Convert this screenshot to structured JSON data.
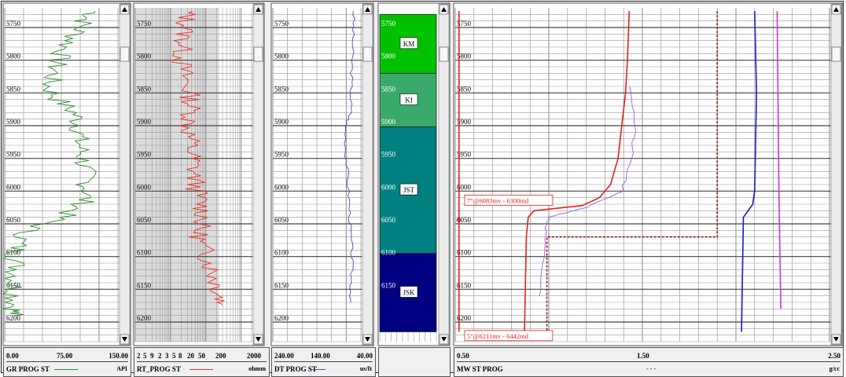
{
  "chart_data": {
    "type": "line",
    "depth_ticks": [
      "5750",
      "5800",
      "5850",
      "5900",
      "5950",
      "6000",
      "6050",
      "6100",
      "6150",
      "6200"
    ],
    "depth_range": [
      5720,
      6230
    ],
    "tracks": [
      {
        "id": "gr",
        "name": "GR PROG ST",
        "unit": "API",
        "scale_labels": [
          "0.00",
          "75.00",
          "150.00"
        ],
        "range": [
          0,
          150
        ],
        "scale": "linear",
        "color": "#2e8b2e",
        "series": [
          {
            "depth": 5725,
            "value": 120
          },
          {
            "depth": 5740,
            "value": 105
          },
          {
            "depth": 5760,
            "value": 95
          },
          {
            "depth": 5780,
            "value": 80
          },
          {
            "depth": 5800,
            "value": 70
          },
          {
            "depth": 5820,
            "value": 65
          },
          {
            "depth": 5840,
            "value": 58
          },
          {
            "depth": 5860,
            "value": 70
          },
          {
            "depth": 5880,
            "value": 92
          },
          {
            "depth": 5900,
            "value": 100
          },
          {
            "depth": 5920,
            "value": 98
          },
          {
            "depth": 5940,
            "value": 102
          },
          {
            "depth": 5960,
            "value": 105
          },
          {
            "depth": 5980,
            "value": 108
          },
          {
            "depth": 6000,
            "value": 110
          },
          {
            "depth": 6020,
            "value": 103
          },
          {
            "depth": 6040,
            "value": 75
          },
          {
            "depth": 6060,
            "value": 30
          },
          {
            "depth": 6080,
            "value": 18
          },
          {
            "depth": 6100,
            "value": 14
          },
          {
            "depth": 6120,
            "value": 16
          },
          {
            "depth": 6140,
            "value": 13
          },
          {
            "depth": 6160,
            "value": 14
          },
          {
            "depth": 6180,
            "value": 12
          },
          {
            "depth": 6190,
            "value": 12
          }
        ]
      },
      {
        "id": "rt",
        "name": "RT_PROG ST",
        "unit": "ohmm",
        "scale_labels": [
          "2",
          "5",
          "9",
          "2",
          "3",
          "5",
          "8",
          "20",
          "50",
          "200",
          "2000"
        ],
        "range": [
          1,
          2000
        ],
        "scale": "log",
        "color": "#e8302a",
        "series": [
          {
            "depth": 5725,
            "value": 30
          },
          {
            "depth": 5740,
            "value": 28
          },
          {
            "depth": 5760,
            "value": 25
          },
          {
            "depth": 5780,
            "value": 22
          },
          {
            "depth": 5800,
            "value": 20
          },
          {
            "depth": 5820,
            "value": 24
          },
          {
            "depth": 5840,
            "value": 30
          },
          {
            "depth": 5860,
            "value": 38
          },
          {
            "depth": 5880,
            "value": 40
          },
          {
            "depth": 5900,
            "value": 32
          },
          {
            "depth": 5920,
            "value": 36
          },
          {
            "depth": 5940,
            "value": 40
          },
          {
            "depth": 5960,
            "value": 45
          },
          {
            "depth": 5980,
            "value": 48
          },
          {
            "depth": 6000,
            "value": 55
          },
          {
            "depth": 6020,
            "value": 75
          },
          {
            "depth": 6040,
            "value": 90
          },
          {
            "depth": 6060,
            "value": 60
          },
          {
            "depth": 6080,
            "value": 70
          },
          {
            "depth": 6100,
            "value": 110
          },
          {
            "depth": 6120,
            "value": 150
          },
          {
            "depth": 6140,
            "value": 200
          },
          {
            "depth": 6160,
            "value": 260
          },
          {
            "depth": 6175,
            "value": 300
          }
        ]
      },
      {
        "id": "dt",
        "name": "DT PROG ST",
        "unit": "us/ft",
        "scale_labels": [
          "240.00",
          "140.00",
          "40.00"
        ],
        "range": [
          240,
          40
        ],
        "scale": "linear",
        "color": "#4848d8",
        "series": [
          {
            "depth": 5725,
            "value": 56
          },
          {
            "depth": 5760,
            "value": 58
          },
          {
            "depth": 5800,
            "value": 60
          },
          {
            "depth": 5840,
            "value": 62
          },
          {
            "depth": 5880,
            "value": 63
          },
          {
            "depth": 5900,
            "value": 75
          },
          {
            "depth": 5940,
            "value": 74
          },
          {
            "depth": 5980,
            "value": 70
          },
          {
            "depth": 6020,
            "value": 66
          },
          {
            "depth": 6060,
            "value": 64
          },
          {
            "depth": 6100,
            "value": 60
          },
          {
            "depth": 6140,
            "value": 62
          },
          {
            "depth": 6170,
            "value": 63
          }
        ]
      },
      {
        "id": "zones",
        "name": "",
        "unit": "",
        "zones": [
          {
            "label": "KM",
            "top": 5730,
            "bottom": 5820,
            "color": "#00c000"
          },
          {
            "label": "KI",
            "top": 5820,
            "bottom": 5902,
            "color": "#3aaa6a"
          },
          {
            "label": "JST",
            "top": 5902,
            "bottom": 6095,
            "color": "#008080"
          },
          {
            "label": "JSK",
            "top": 6095,
            "bottom": 6215,
            "color": "#000080"
          }
        ],
        "depth_labels": [
          "5750",
          "5800",
          "5850",
          "5900",
          "5950",
          "6000",
          "6050",
          "6100",
          "6150"
        ]
      },
      {
        "id": "mw",
        "name": "MW ST PROG",
        "unit": "g/cc",
        "unit2": "- - -",
        "scale_labels": [
          "0.50",
          "1.50",
          "2.50"
        ],
        "range": [
          0.5,
          2.5
        ],
        "scale": "linear",
        "annotations": [
          "7\"@6083mv - 6300md",
          "5\"@6211mv - 6442md"
        ],
        "series": [
          {
            "name": "",
            "color": "#e0201e",
            "points": [
              {
                "depth": 5725,
                "value": 1.43
              },
              {
                "depth": 5800,
                "value": 1.42
              },
              {
                "depth": 5850,
                "value": 1.41
              },
              {
                "depth": 5900,
                "value": 1.39
              },
              {
                "depth": 5950,
                "value": 1.37
              },
              {
                "depth": 5990,
                "value": 1.33
              },
              {
                "depth": 6010,
                "value": 1.27
              },
              {
                "depth": 6022,
                "value": 1.18
              },
              {
                "depth": 6030,
                "value": 0.92
              },
              {
                "depth": 6040,
                "value": 0.89
              },
              {
                "depth": 6070,
                "value": 0.88
              },
              {
                "depth": 6215,
                "value": 0.87
              }
            ]
          },
          {
            "name": "",
            "color": "#9a5ed8",
            "points": [
              {
                "depth": 5840,
                "value": 1.44
              },
              {
                "depth": 5900,
                "value": 1.46
              },
              {
                "depth": 5950,
                "value": 1.44
              },
              {
                "depth": 6000,
                "value": 1.39
              },
              {
                "depth": 6025,
                "value": 1.2
              },
              {
                "depth": 6040,
                "value": 1.0
              },
              {
                "depth": 6060,
                "value": 0.98
              },
              {
                "depth": 6100,
                "value": 0.97
              },
              {
                "depth": 6160,
                "value": 0.95
              }
            ]
          },
          {
            "name": "",
            "color": "#1818c8",
            "points": [
              {
                "depth": 5725,
                "value": 2.1
              },
              {
                "depth": 5850,
                "value": 2.11
              },
              {
                "depth": 6000,
                "value": 2.1
              },
              {
                "depth": 6020,
                "value": 2.09
              },
              {
                "depth": 6040,
                "value": 2.04
              },
              {
                "depth": 6215,
                "value": 2.03
              }
            ]
          },
          {
            "name": "",
            "color": "#d030e0",
            "points": [
              {
                "depth": 5725,
                "value": 2.22
              },
              {
                "depth": 6000,
                "value": 2.23
              },
              {
                "depth": 6180,
                "value": 2.24
              }
            ]
          },
          {
            "name": "",
            "color": "#8b1a1a",
            "dashed": true,
            "points": [
              {
                "depth": 5725,
                "value": 1.9
              },
              {
                "depth": 6070,
                "value": 1.9
              },
              {
                "depth": 6070,
                "value": 0.99
              },
              {
                "depth": 6215,
                "value": 0.99
              }
            ]
          },
          {
            "name": "",
            "color": "#e02020",
            "points": [
              {
                "depth": 5725,
                "value": 0.52
              },
              {
                "depth": 6215,
                "value": 0.52
              }
            ]
          }
        ]
      }
    ]
  }
}
